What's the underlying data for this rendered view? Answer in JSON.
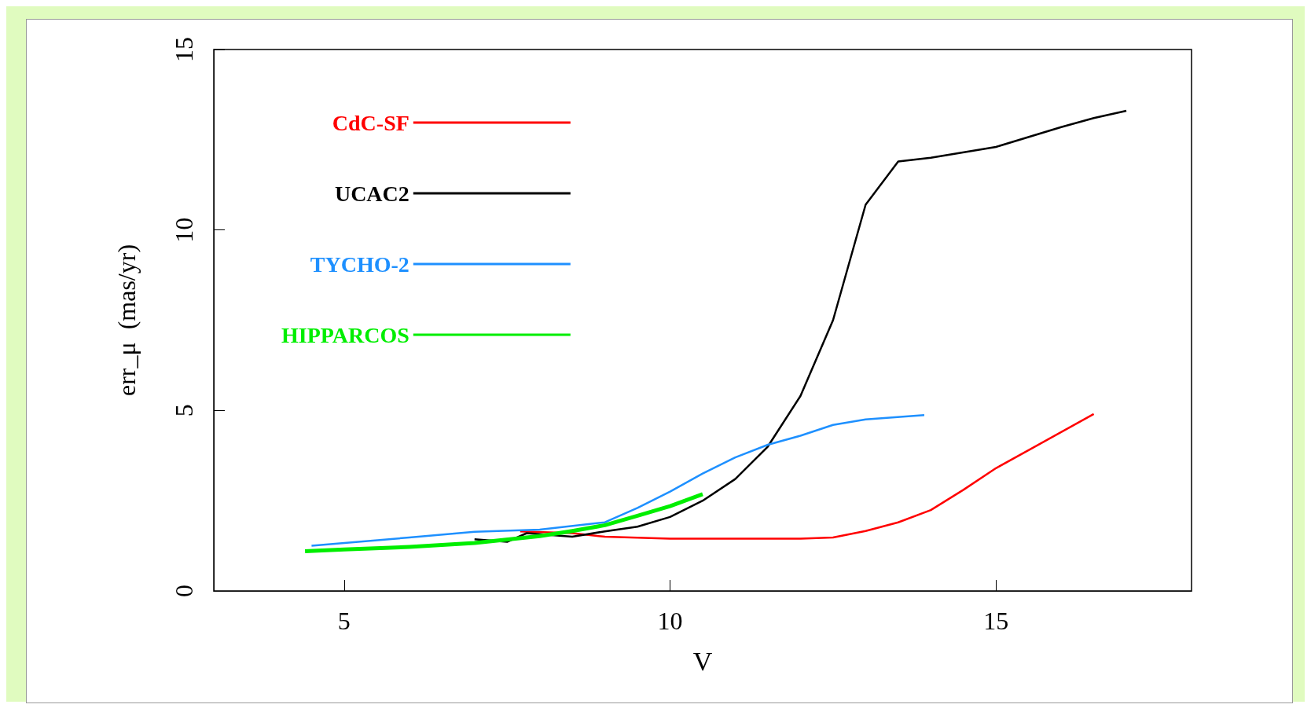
{
  "chart_data": {
    "type": "line",
    "xlabel": "V",
    "ylabel": "err_μ  (mas/yr)",
    "xlim": [
      3,
      18
    ],
    "xticks": [
      5,
      10,
      15
    ],
    "ylim": [
      0,
      15
    ],
    "yticks": [
      0,
      5,
      10,
      15
    ],
    "grid": false,
    "legend": "top left",
    "marker": "none",
    "line_style": "solid",
    "series": [
      {
        "name": "CdC-SF",
        "color": "#ff0000",
        "x": [
          7.7,
          8.5,
          9,
          10,
          11,
          12,
          12.5,
          13,
          13.5,
          14,
          14.5,
          15,
          15.5,
          16,
          16.5
        ],
        "values": [
          1.65,
          1.6,
          1.5,
          1.45,
          1.45,
          1.45,
          1.48,
          1.66,
          1.9,
          2.24,
          2.8,
          3.4,
          3.9,
          4.4,
          4.9
        ]
      },
      {
        "name": "UCAC2",
        "color": "#000000",
        "x": [
          7,
          7.5,
          7.8,
          8.5,
          9,
          9.5,
          10,
          10.5,
          11,
          11.5,
          12,
          12.5,
          13,
          13.5,
          14,
          15,
          16,
          16.5,
          17
        ],
        "values": [
          1.43,
          1.36,
          1.6,
          1.5,
          1.65,
          1.78,
          2.05,
          2.5,
          3.1,
          4.0,
          5.4,
          7.5,
          10.7,
          11.9,
          12.0,
          12.3,
          12.85,
          13.1,
          13.3
        ]
      },
      {
        "name": "TYCHO-2",
        "color": "#1e90ff",
        "x": [
          4.5,
          6,
          7,
          8,
          9,
          9.5,
          10,
          10.5,
          11,
          11.5,
          12,
          12.5,
          13,
          13.9
        ],
        "values": [
          1.25,
          1.48,
          1.64,
          1.7,
          1.9,
          2.3,
          2.75,
          3.25,
          3.7,
          4.05,
          4.3,
          4.6,
          4.75,
          4.87
        ]
      },
      {
        "name": "HIPPARCOS",
        "color": "#00ee00",
        "x": [
          4.4,
          5,
          6,
          7,
          8,
          8.5,
          9,
          9.5,
          10,
          10.5
        ],
        "values": [
          1.1,
          1.15,
          1.22,
          1.33,
          1.52,
          1.66,
          1.82,
          2.08,
          2.35,
          2.68
        ]
      }
    ]
  }
}
